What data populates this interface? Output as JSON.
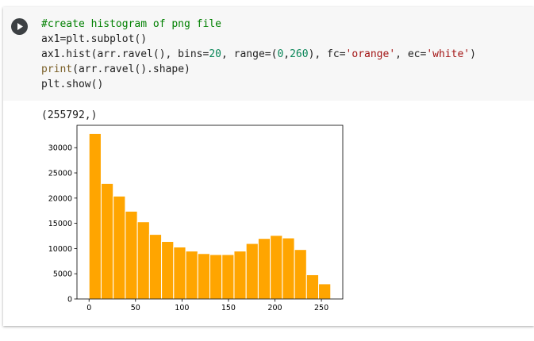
{
  "cell": {
    "run_button_icon": "play-icon",
    "code_lines": [
      [
        {
          "t": "#create histogram of png file",
          "k": "comment"
        }
      ],
      [
        {
          "t": "ax1=plt.subplot()",
          "k": "plain"
        }
      ],
      [
        {
          "t": "ax1.hist(arr.ravel(), bins=",
          "k": "plain"
        },
        {
          "t": "20",
          "k": "num"
        },
        {
          "t": ", range=(",
          "k": "plain"
        },
        {
          "t": "0",
          "k": "num"
        },
        {
          "t": ",",
          "k": "plain"
        },
        {
          "t": "260",
          "k": "num"
        },
        {
          "t": "), fc=",
          "k": "plain"
        },
        {
          "t": "'orange'",
          "k": "str"
        },
        {
          "t": ", ec=",
          "k": "plain"
        },
        {
          "t": "'white'",
          "k": "str"
        },
        {
          "t": ")",
          "k": "plain"
        }
      ],
      [
        {
          "t": "print",
          "k": "fn"
        },
        {
          "t": "(arr.ravel().shape)",
          "k": "plain"
        }
      ],
      [
        {
          "t": "plt.show()",
          "k": "plain"
        }
      ]
    ],
    "output_text": "(255792,)"
  },
  "colors": {
    "bar_fill": "#ffa500",
    "bar_edge": "#ffffff",
    "comment": "#008000",
    "number": "#098658",
    "string": "#a31515"
  },
  "chart_data": {
    "type": "bar",
    "bins": 20,
    "range": [
      0,
      260
    ],
    "counts": [
      32800,
      22900,
      20400,
      17400,
      15300,
      12800,
      11400,
      10300,
      9500,
      9000,
      8800,
      8800,
      9500,
      11000,
      12000,
      12600,
      12100,
      9800,
      4800,
      3000
    ],
    "xlim": [
      -13,
      273
    ],
    "ylim": [
      0,
      34440
    ],
    "xticks": [
      0,
      50,
      100,
      150,
      200,
      250
    ],
    "yticks": [
      0,
      5000,
      10000,
      15000,
      20000,
      25000,
      30000
    ],
    "title": "",
    "xlabel": "",
    "ylabel": ""
  }
}
